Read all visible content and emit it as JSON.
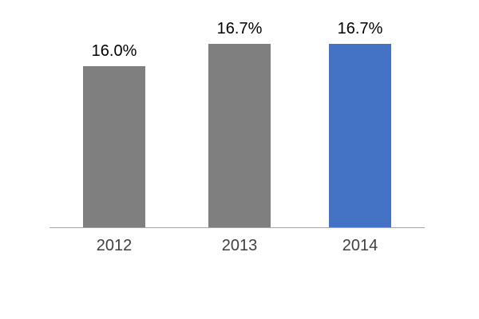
{
  "chart_data": {
    "type": "bar",
    "title": "",
    "xlabel": "",
    "ylabel": "",
    "categories": [
      "2012",
      "2013",
      "2014"
    ],
    "values": [
      16.0,
      16.7,
      16.7
    ],
    "value_labels": [
      "16.0%",
      "16.7%",
      "16.7%"
    ],
    "bar_colors": [
      "#7f7f7f",
      "#7f7f7f",
      "#4472c4"
    ],
    "axis_line_color": "#a6a6a6",
    "value_label_color": "#000000",
    "category_label_color": "#404040",
    "grid": false,
    "legend": false
  }
}
